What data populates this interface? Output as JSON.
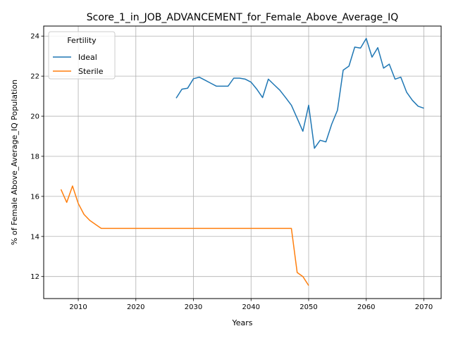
{
  "chart_data": {
    "type": "line",
    "title": "Score_1_in_JOB_ADVANCEMENT_for_Female_Above_Average_IQ",
    "xlabel": "Years",
    "ylabel": "% of Female Above_Average_IQ Population",
    "xlim": [
      2004,
      2073
    ],
    "ylim": [
      10.9,
      24.5
    ],
    "xticks": [
      2010,
      2020,
      2030,
      2040,
      2050,
      2060,
      2070
    ],
    "yticks": [
      12,
      14,
      16,
      18,
      20,
      22,
      24
    ],
    "grid": true,
    "legend": {
      "title": "Fertility",
      "placement": "top-left"
    },
    "colors": {
      "Ideal": "#1f77b4",
      "Sterile": "#ff7f0e"
    },
    "series": [
      {
        "name": "Ideal",
        "x": [
          2027,
          2028,
          2029,
          2030,
          2031,
          2032,
          2033,
          2034,
          2035,
          2036,
          2037,
          2038,
          2039,
          2040,
          2041,
          2042,
          2043,
          2044,
          2045,
          2046,
          2047,
          2048,
          2049,
          2050,
          2051,
          2052,
          2053,
          2054,
          2055,
          2056,
          2057,
          2058,
          2059,
          2060,
          2061,
          2062,
          2063,
          2064,
          2065,
          2066,
          2067,
          2068,
          2069,
          2070
        ],
        "y": [
          20.9,
          21.35,
          21.4,
          21.87,
          21.95,
          21.8,
          21.65,
          21.5,
          21.5,
          21.5,
          21.9,
          21.9,
          21.85,
          21.7,
          21.35,
          20.93,
          21.85,
          21.57,
          21.3,
          20.93,
          20.55,
          19.9,
          19.25,
          20.55,
          18.4,
          18.8,
          18.72,
          19.6,
          20.3,
          22.3,
          22.5,
          23.45,
          23.4,
          23.88,
          22.95,
          23.42,
          22.4,
          22.6,
          21.85,
          21.95,
          21.2,
          20.8,
          20.5,
          20.4
        ]
      },
      {
        "name": "Sterile",
        "x": [
          2007,
          2008,
          2009,
          2010,
          2011,
          2012,
          2013,
          2014,
          2015,
          2020,
          2025,
          2030,
          2035,
          2040,
          2045,
          2047,
          2048,
          2049,
          2050
        ],
        "y": [
          16.35,
          15.7,
          16.52,
          15.65,
          15.1,
          14.8,
          14.6,
          14.4,
          14.4,
          14.4,
          14.4,
          14.4,
          14.4,
          14.4,
          14.4,
          14.4,
          12.2,
          12.0,
          11.55
        ]
      }
    ]
  }
}
